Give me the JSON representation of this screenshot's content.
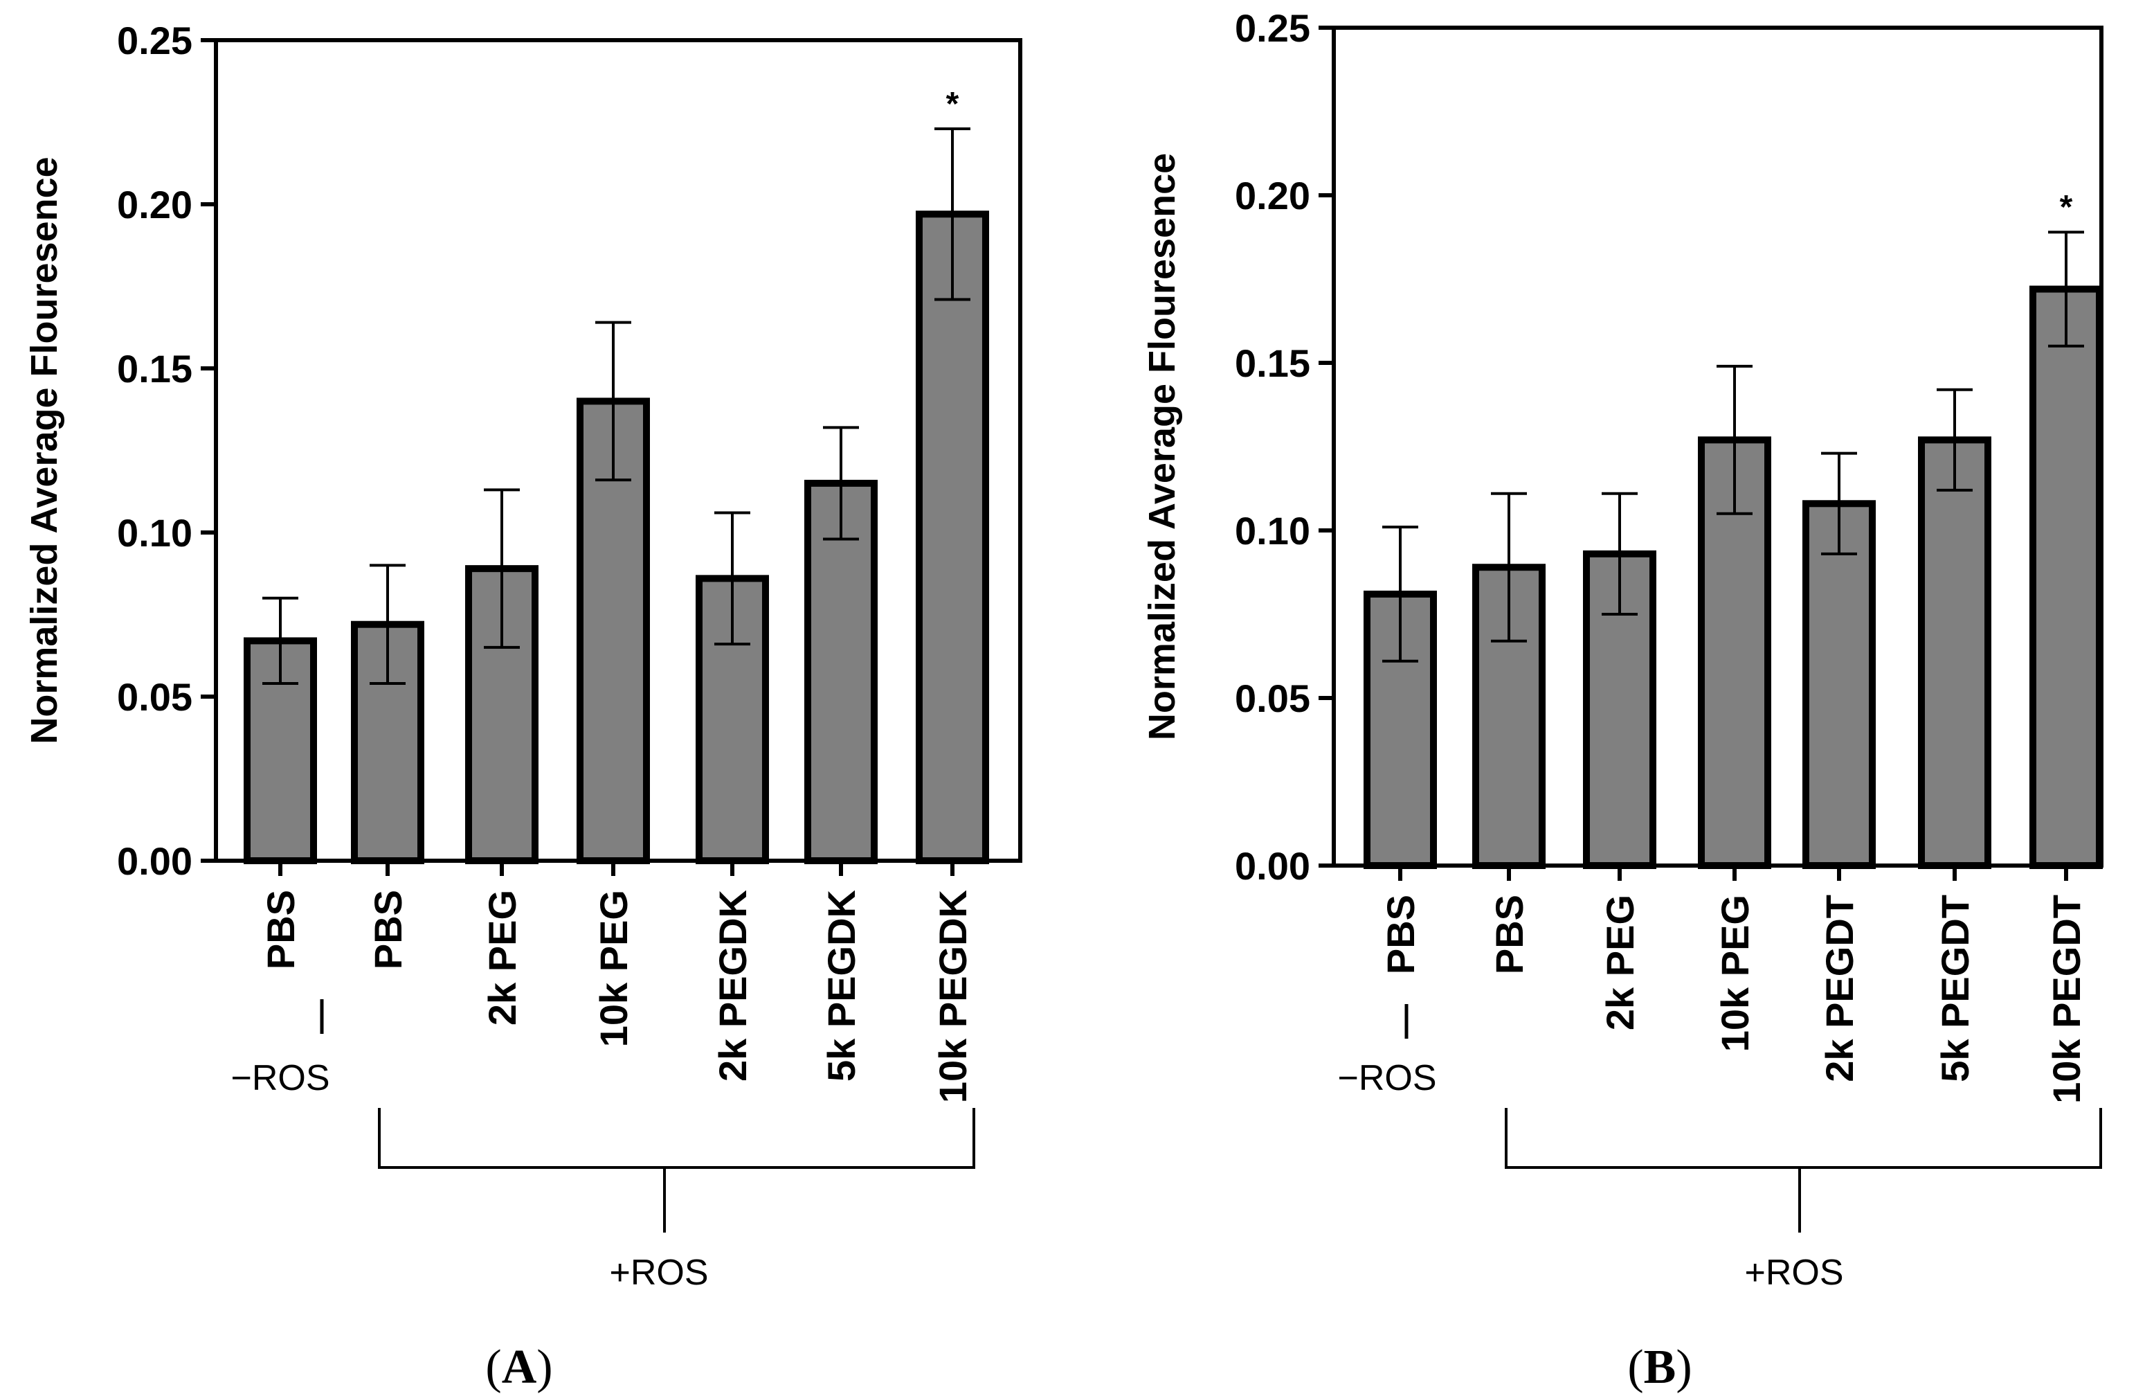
{
  "chart_data": [
    {
      "type": "bar",
      "panel": "A",
      "ylabel": "Normalized Average Flouresence",
      "ylim": [
        0,
        0.25
      ],
      "yticks": [
        "0.00",
        "0.05",
        "0.10",
        "0.15",
        "0.20",
        "0.25"
      ],
      "categories": [
        "PBS",
        "PBS",
        "2k PEG",
        "10k PEG",
        "2k PEGDK",
        "5k PEGDK",
        "10k PEGDK"
      ],
      "values": [
        0.067,
        0.072,
        0.089,
        0.14,
        0.086,
        0.115,
        0.197
      ],
      "errors": [
        0.013,
        0.018,
        0.024,
        0.024,
        0.02,
        0.017,
        0.026
      ],
      "significance": [
        "",
        "",
        "",
        "",
        "",
        "",
        "*"
      ],
      "bar_color": "#808080",
      "groups": {
        "minus_ros_label": "−ROS",
        "plus_ros_label": "+ROS"
      },
      "panel_label": {
        "open": "(",
        "letter": "A",
        "close": ")"
      }
    },
    {
      "type": "bar",
      "panel": "B",
      "ylabel": "Normalized Average Flouresence",
      "ylim": [
        0,
        0.25
      ],
      "yticks": [
        "0.00",
        "0.05",
        "0.10",
        "0.15",
        "0.20",
        "0.25"
      ],
      "categories": [
        "PBS",
        "PBS",
        "2k PEG",
        "10k PEG",
        "2k PEGDT",
        "5k PEGDT",
        "10k PEGDT"
      ],
      "values": [
        0.081,
        0.089,
        0.093,
        0.127,
        0.108,
        0.127,
        0.172
      ],
      "errors": [
        0.02,
        0.022,
        0.018,
        0.022,
        0.015,
        0.015,
        0.017
      ],
      "significance": [
        "",
        "",
        "",
        "",
        "",
        "",
        "*"
      ],
      "bar_color": "#808080",
      "groups": {
        "minus_ros_label": "−ROS",
        "plus_ros_label": "+ROS"
      },
      "panel_label": {
        "open": "(",
        "letter": "B",
        "close": ")"
      }
    }
  ]
}
